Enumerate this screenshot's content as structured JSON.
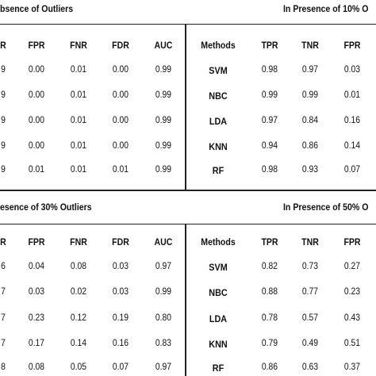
{
  "top": {
    "left_caption": "bsence of Outliers",
    "right_caption": "In Presence of 10% O",
    "left_headers": [
      "R",
      "FPR",
      "FNR",
      "FDR",
      "AUC"
    ],
    "right_headers": [
      "Methods",
      "TPR",
      "TNR",
      "FPR"
    ],
    "left_rows": [
      [
        "9",
        "0.00",
        "0.01",
        "0.00",
        "0.99"
      ],
      [
        "9",
        "0.00",
        "0.01",
        "0.00",
        "0.99"
      ],
      [
        "9",
        "0.00",
        "0.01",
        "0.00",
        "0.99"
      ],
      [
        "9",
        "0.00",
        "0.01",
        "0.00",
        "0.99"
      ],
      [
        "9",
        "0.01",
        "0.01",
        "0.01",
        "0.99"
      ]
    ],
    "right_rows": [
      [
        "SVM",
        "0.98",
        "0.97",
        "0.03"
      ],
      [
        "NBC",
        "0.99",
        "0.99",
        "0.01"
      ],
      [
        "LDA",
        "0.97",
        "0.84",
        "0.16"
      ],
      [
        "KNN",
        "0.94",
        "0.86",
        "0.14"
      ],
      [
        "RF",
        "0.98",
        "0.93",
        "0.07"
      ]
    ]
  },
  "bottom": {
    "left_caption": "esence of 30% Outliers",
    "right_caption": "In Presence of 50% O",
    "left_headers": [
      "R",
      "FPR",
      "FNR",
      "FDR",
      "AUC"
    ],
    "right_headers": [
      "Methods",
      "TPR",
      "TNR",
      "FPR"
    ],
    "left_rows": [
      [
        "6",
        "0.04",
        "0.08",
        "0.03",
        "0.97"
      ],
      [
        "7",
        "0.03",
        "0.02",
        "0.03",
        "0.99"
      ],
      [
        "7",
        "0.23",
        "0.12",
        "0.19",
        "0.80"
      ],
      [
        "7",
        "0.17",
        "0.14",
        "0.16",
        "0.83"
      ],
      [
        "8",
        "0.08",
        "0.05",
        "0.07",
        "0.97"
      ]
    ],
    "right_rows": [
      [
        "SVM",
        "0.82",
        "0.73",
        "0.27"
      ],
      [
        "NBC",
        "0.88",
        "0.77",
        "0.23"
      ],
      [
        "LDA",
        "0.78",
        "0.57",
        "0.43"
      ],
      [
        "KNN",
        "0.79",
        "0.49",
        "0.51"
      ],
      [
        "RF",
        "0.86",
        "0.63",
        "0.37"
      ]
    ]
  }
}
